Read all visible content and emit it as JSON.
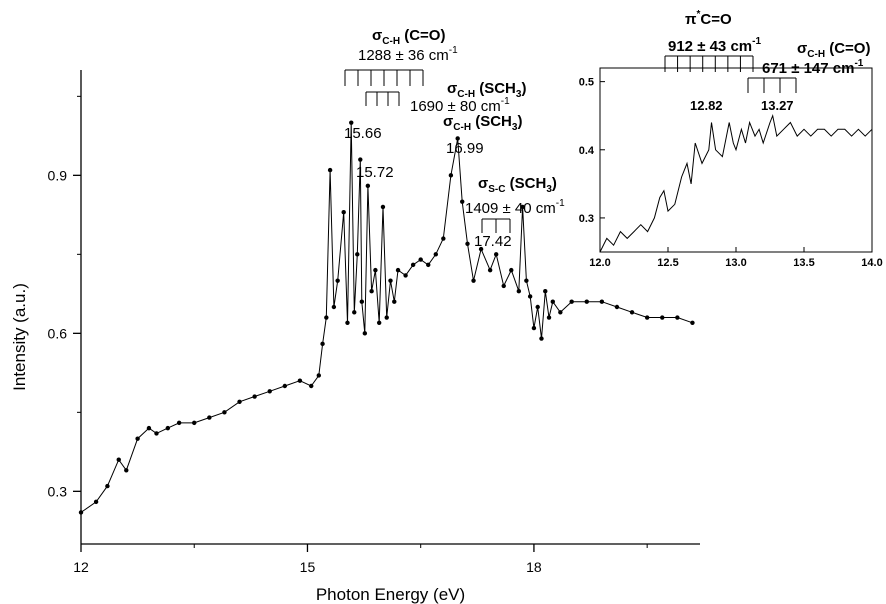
{
  "chart_data": [
    {
      "type": "line",
      "markers": true,
      "xlabel": "Photon Energy (eV)",
      "ylabel": "Intensity (a.u.)",
      "xlim": [
        12,
        20.2
      ],
      "ylim": [
        0.2,
        1.1
      ],
      "xticks": [
        12,
        15,
        18
      ],
      "yticks": [
        0.3,
        0.6,
        0.9
      ],
      "grid": false,
      "series": [
        {
          "x": [
            12.0,
            12.2,
            12.35,
            12.5,
            12.6,
            12.75,
            12.9,
            13.0,
            13.15,
            13.3,
            13.5,
            13.7,
            13.9,
            14.1,
            14.3,
            14.5,
            14.7,
            14.9,
            15.05,
            15.15,
            15.2,
            15.25,
            15.3,
            15.35,
            15.4,
            15.48,
            15.53,
            15.58,
            15.62,
            15.66,
            15.7,
            15.72,
            15.76,
            15.8,
            15.85,
            15.9,
            15.95,
            16.0,
            16.05,
            16.1,
            16.15,
            16.2,
            16.3,
            16.4,
            16.5,
            16.6,
            16.7,
            16.8,
            16.9,
            16.99,
            17.05,
            17.12,
            17.2,
            17.3,
            17.42,
            17.5,
            17.6,
            17.7,
            17.8,
            17.85,
            17.9,
            17.95,
            18.0,
            18.05,
            18.1,
            18.15,
            18.2,
            18.25,
            18.35,
            18.5,
            18.7,
            18.9,
            19.1,
            19.3,
            19.5,
            19.7,
            19.9,
            20.1
          ],
          "y": [
            0.26,
            0.28,
            0.31,
            0.36,
            0.34,
            0.4,
            0.42,
            0.41,
            0.42,
            0.43,
            0.43,
            0.44,
            0.45,
            0.47,
            0.48,
            0.49,
            0.5,
            0.51,
            0.5,
            0.52,
            0.58,
            0.63,
            0.91,
            0.65,
            0.7,
            0.83,
            0.62,
            1.0,
            0.64,
            0.75,
            0.93,
            0.66,
            0.6,
            0.88,
            0.68,
            0.72,
            0.62,
            0.84,
            0.63,
            0.7,
            0.66,
            0.72,
            0.71,
            0.73,
            0.74,
            0.73,
            0.75,
            0.78,
            0.9,
            0.97,
            0.85,
            0.77,
            0.7,
            0.76,
            0.72,
            0.75,
            0.69,
            0.72,
            0.68,
            0.84,
            0.7,
            0.67,
            0.61,
            0.65,
            0.59,
            0.68,
            0.63,
            0.66,
            0.64,
            0.66,
            0.66,
            0.66,
            0.65,
            0.64,
            0.63,
            0.63,
            0.63,
            0.62
          ]
        }
      ],
      "annotations": [
        {
          "text": "σ",
          "sub": "C-H",
          "rest": " (C=O)"
        },
        {
          "text": "1288 ± 36 cm",
          "sup": "-1"
        },
        {
          "text": "σ",
          "sub": "C-H",
          "rest": " (SCH",
          "sub2": "3",
          "rest2": ")"
        },
        {
          "text": "1690 ± 80 cm",
          "sup": "-1"
        },
        {
          "text": "15.66"
        },
        {
          "text": "15.72"
        },
        {
          "text": "σ",
          "sub": "C-H",
          "rest": " (SCH",
          "sub2": "3",
          "rest2": ")"
        },
        {
          "text": "16.99"
        },
        {
          "text": "σ",
          "sub": "S-C",
          "rest": " (SCH",
          "sub2": "3",
          "rest2": ")"
        },
        {
          "text": "1409 ± 40 cm",
          "sup": "-1"
        },
        {
          "text": "17.42"
        }
      ]
    },
    {
      "type": "line",
      "inset": true,
      "xlim": [
        12.0,
        14.0
      ],
      "ylim": [
        0.25,
        0.52
      ],
      "xticks": [
        12.0,
        12.5,
        13.0,
        13.5,
        14.0
      ],
      "yticks": [
        0.3,
        0.4,
        0.5
      ],
      "grid": false,
      "series": [
        {
          "x": [
            12.0,
            12.05,
            12.1,
            12.15,
            12.2,
            12.25,
            12.3,
            12.35,
            12.4,
            12.44,
            12.47,
            12.5,
            12.55,
            12.6,
            12.64,
            12.67,
            12.7,
            12.75,
            12.8,
            12.82,
            12.85,
            12.9,
            12.95,
            12.98,
            13.0,
            13.04,
            13.07,
            13.1,
            13.14,
            13.17,
            13.2,
            13.25,
            13.27,
            13.3,
            13.35,
            13.4,
            13.45,
            13.5,
            13.55,
            13.6,
            13.65,
            13.7,
            13.75,
            13.8,
            13.85,
            13.9,
            13.95,
            14.0
          ],
          "y": [
            0.25,
            0.27,
            0.26,
            0.28,
            0.27,
            0.28,
            0.29,
            0.28,
            0.3,
            0.33,
            0.34,
            0.31,
            0.32,
            0.36,
            0.38,
            0.35,
            0.41,
            0.38,
            0.4,
            0.44,
            0.4,
            0.39,
            0.44,
            0.41,
            0.4,
            0.43,
            0.41,
            0.44,
            0.42,
            0.43,
            0.41,
            0.44,
            0.45,
            0.42,
            0.43,
            0.44,
            0.42,
            0.43,
            0.42,
            0.43,
            0.43,
            0.42,
            0.43,
            0.43,
            0.42,
            0.43,
            0.42,
            0.43
          ]
        }
      ],
      "annotations": [
        {
          "text": "π",
          "sup": "*",
          "rest": "C=O"
        },
        {
          "text": "912 ± 43 cm",
          "sup": "-1"
        },
        {
          "text": "σ",
          "sub": "C-H",
          "rest": " (C=O)"
        },
        {
          "text": "671 ± 147 cm",
          "sup": "-1"
        },
        {
          "text": "12.82"
        },
        {
          "text": "13.27"
        }
      ]
    }
  ]
}
